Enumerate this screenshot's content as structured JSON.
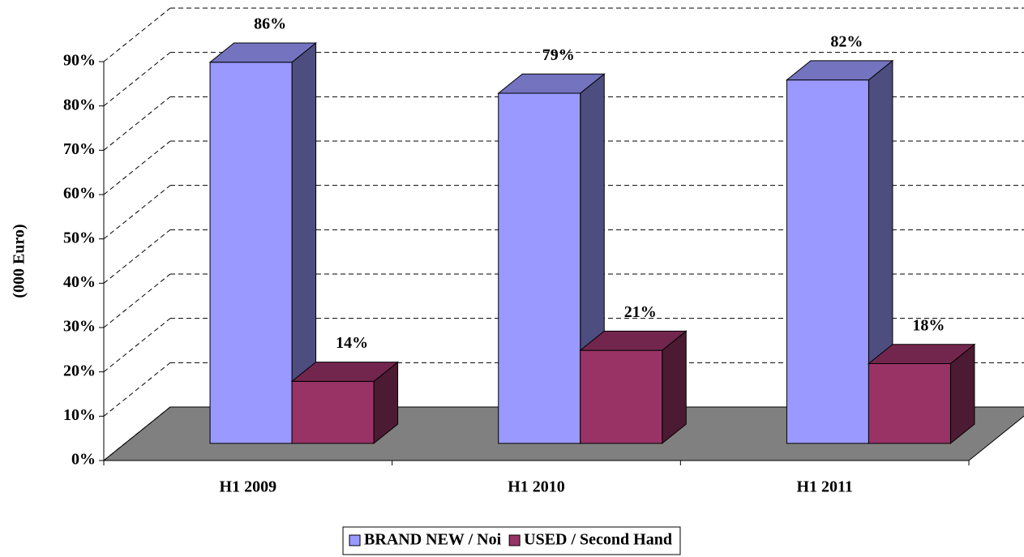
{
  "chart_data": {
    "type": "bar3d",
    "y_label": "(000 Euro)",
    "categories": [
      "H1 2009",
      "H1 2010",
      "H1 2011"
    ],
    "series": [
      {
        "name": "BRAND NEW / Noi",
        "color": "#9999ff",
        "values": [
          86,
          79,
          82
        ],
        "value_labels": [
          "86%",
          "79%",
          "82%"
        ]
      },
      {
        "name": "USED / Second Hand",
        "color": "#993366",
        "values": [
          14,
          21,
          18
        ],
        "value_labels": [
          "14%",
          "21%",
          "18%"
        ]
      }
    ],
    "ylim": [
      0,
      90
    ],
    "yticks": [
      {
        "value": 0,
        "label": "0%"
      },
      {
        "value": 10,
        "label": "10%"
      },
      {
        "value": 20,
        "label": "20%"
      },
      {
        "value": 30,
        "label": "30%"
      },
      {
        "value": 40,
        "label": "40%"
      },
      {
        "value": 50,
        "label": "50%"
      },
      {
        "value": 60,
        "label": "60%"
      },
      {
        "value": 70,
        "label": "70%"
      },
      {
        "value": 80,
        "label": "80%"
      },
      {
        "value": 90,
        "label": "90%"
      }
    ],
    "grid": true,
    "legend": "bottom"
  }
}
